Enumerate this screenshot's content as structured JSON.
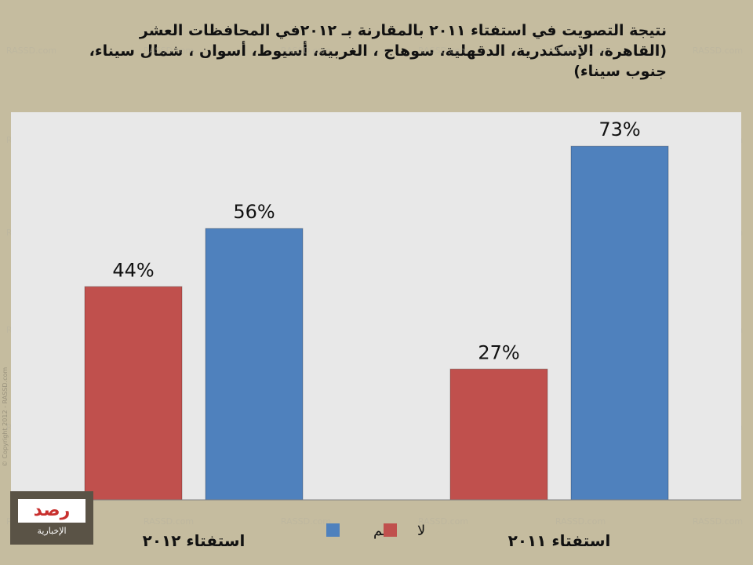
{
  "title": "نتيجة التصويت في استفتاء ٢٠١١ بالمقارنة بـ ٢٠١٢في المحافظات العشر (القاهرة، الإسكندرية، الدقهلية، سوهاج ، الغربية، أسيوط، أسوان ، شمال سيناء، جنوب سيناء)",
  "watermark": "RASSD.com",
  "copyright": "© Copyright 2012 - RASSD.com",
  "logo": {
    "mark": "رصد",
    "text": "الإخبارية"
  },
  "colors": {
    "background": "#c5bc9f",
    "plot": "#e8e8e8",
    "no": "#c0504d",
    "yes": "#4f81bd"
  },
  "chart_data": {
    "type": "bar",
    "categories": [
      "استفتاء ٢٠١٢",
      "استفتاء ٢٠١١"
    ],
    "series": [
      {
        "name": "لا",
        "values": [
          44,
          27
        ],
        "color": "#c0504d"
      },
      {
        "name": "نعم",
        "values": [
          56,
          73
        ],
        "color": "#4f81bd"
      }
    ],
    "data_labels": [
      [
        "44%",
        "27%"
      ],
      [
        "56%",
        "73%"
      ]
    ],
    "ylim": [
      0,
      80
    ],
    "grid": false,
    "legend": "bottom-center"
  }
}
